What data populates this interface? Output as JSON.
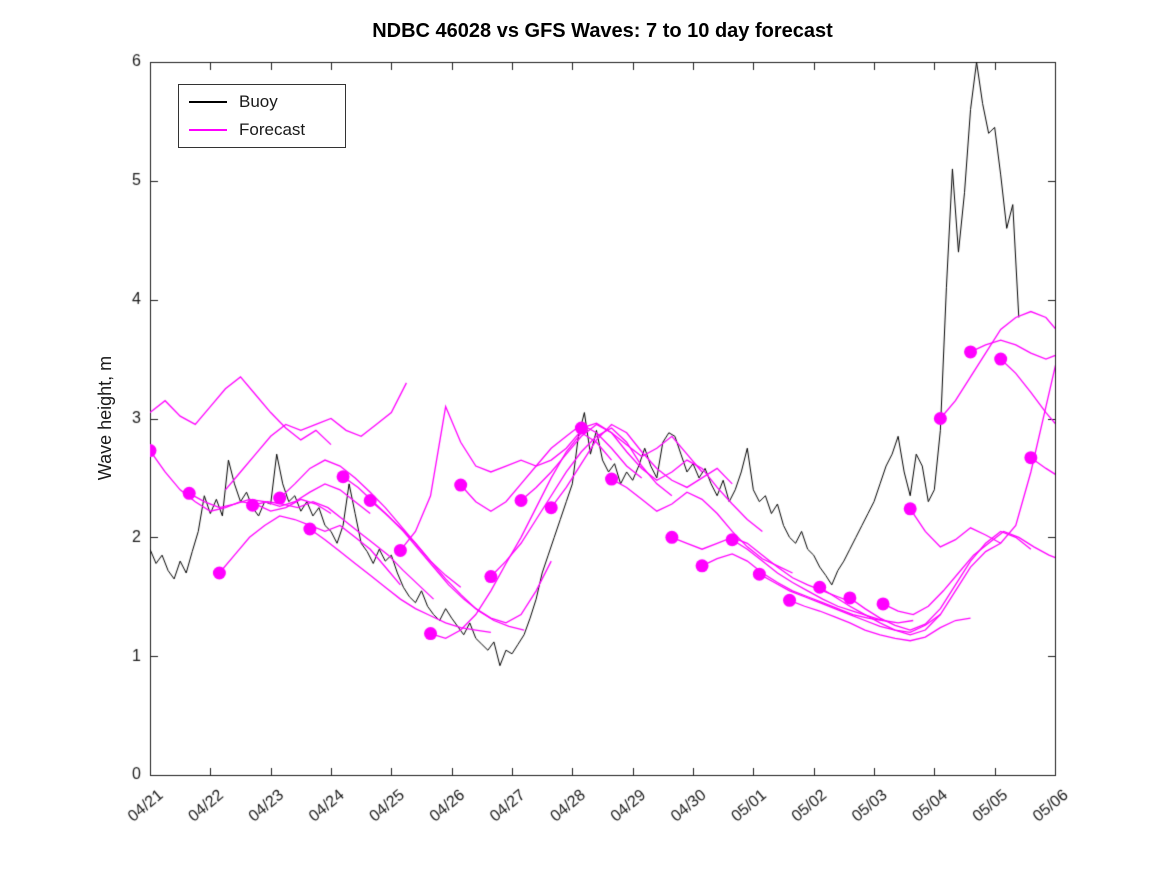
{
  "chart_data": {
    "type": "line",
    "title": "NDBC 46028 vs GFS Waves: 7 to 10 day forecast",
    "xlabel": "",
    "ylabel": "Wave height, m",
    "ylim": [
      0,
      6
    ],
    "yticks": [
      0,
      1,
      2,
      3,
      4,
      5,
      6
    ],
    "xlim_days": [
      0,
      15
    ],
    "xtick_days": [
      0,
      1,
      2,
      3,
      4,
      5,
      6,
      7,
      8,
      9,
      10,
      11,
      12,
      13,
      14,
      15
    ],
    "xtick_labels": [
      "04/21",
      "04/22",
      "04/23",
      "04/24",
      "04/25",
      "04/26",
      "04/27",
      "04/28",
      "04/29",
      "04/30",
      "05/01",
      "05/02",
      "05/03",
      "05/04",
      "05/05",
      "05/06"
    ],
    "grid": false,
    "legend_position": "top-left",
    "legend": [
      {
        "label": "Buoy",
        "color": "#000000"
      },
      {
        "label": "Forecast",
        "color": "#ff00ff"
      }
    ],
    "series": {
      "buoy": {
        "name": "Buoy",
        "color": "#000000",
        "start_day": 0,
        "step_days": 0.1,
        "values": [
          1.9,
          1.78,
          1.85,
          1.72,
          1.65,
          1.8,
          1.7,
          1.88,
          2.05,
          2.35,
          2.2,
          2.32,
          2.18,
          2.65,
          2.45,
          2.3,
          2.38,
          2.25,
          2.18,
          2.3,
          2.28,
          2.7,
          2.45,
          2.3,
          2.35,
          2.22,
          2.3,
          2.18,
          2.25,
          2.1,
          2.05,
          1.95,
          2.1,
          2.45,
          2.2,
          1.95,
          1.88,
          1.78,
          1.9,
          1.8,
          1.85,
          1.7,
          1.58,
          1.5,
          1.45,
          1.55,
          1.42,
          1.35,
          1.3,
          1.4,
          1.32,
          1.25,
          1.18,
          1.28,
          1.15,
          1.1,
          1.05,
          1.12,
          0.92,
          1.05,
          1.02,
          1.1,
          1.18,
          1.32,
          1.48,
          1.7,
          1.85,
          2.0,
          2.15,
          2.3,
          2.45,
          2.85,
          3.05,
          2.7,
          2.9,
          2.65,
          2.55,
          2.62,
          2.45,
          2.55,
          2.48,
          2.6,
          2.75,
          2.6,
          2.5,
          2.8,
          2.88,
          2.85,
          2.7,
          2.55,
          2.62,
          2.5,
          2.58,
          2.45,
          2.35,
          2.48,
          2.3,
          2.4,
          2.55,
          2.75,
          2.4,
          2.3,
          2.35,
          2.2,
          2.28,
          2.1,
          2.0,
          1.95,
          2.05,
          1.9,
          1.85,
          1.75,
          1.68,
          1.6,
          1.72,
          1.8,
          1.9,
          2.0,
          2.1,
          2.2,
          2.3,
          2.45,
          2.6,
          2.7,
          2.85,
          2.55,
          2.35,
          2.7,
          2.6,
          2.3,
          2.4,
          2.9,
          4.1,
          5.1,
          4.4,
          4.9,
          5.6,
          6.0,
          5.65,
          5.4,
          5.45,
          5.05,
          4.6,
          4.8,
          3.85
        ]
      },
      "forecast": {
        "name": "Forecast",
        "color": "#ff00ff",
        "marker": "filled-circle",
        "step_days": 0.25,
        "runs": [
          {
            "start_day": 0.0,
            "dot": false,
            "values": [
              3.05,
              3.15,
              3.02,
              2.95,
              3.1,
              3.25,
              3.35,
              3.2,
              3.05,
              2.92,
              2.82,
              2.9,
              2.78
            ]
          },
          {
            "start_day": 0.0,
            "dot": true,
            "values": [
              2.73,
              2.55,
              2.4,
              2.3,
              2.22,
              2.25,
              2.3,
              2.28,
              2.22,
              2.25,
              2.32,
              2.28,
              2.2
            ]
          },
          {
            "start_day": 0.65,
            "dot": true,
            "values": [
              2.37,
              2.3,
              2.25,
              2.28,
              2.32,
              2.3,
              2.26,
              2.3,
              2.38,
              2.45,
              2.4,
              2.3,
              2.2
            ]
          },
          {
            "start_day": 1.15,
            "dot": true,
            "values": [
              1.7,
              1.85,
              2.0,
              2.1,
              2.18,
              2.15,
              2.1,
              2.05,
              2.1,
              2.0,
              1.9,
              1.75,
              1.6
            ]
          },
          {
            "start_day": 1.25,
            "dot": false,
            "values": [
              2.4,
              2.55,
              2.7,
              2.85,
              2.95,
              2.9,
              2.95,
              3.0,
              2.9,
              2.85,
              2.95,
              3.05,
              3.3
            ]
          },
          {
            "start_day": 1.7,
            "dot": true,
            "values": [
              2.27,
              2.3,
              2.28,
              2.25,
              2.3,
              2.25,
              2.15,
              2.05,
              1.95,
              1.85,
              1.72,
              1.6,
              1.48
            ]
          },
          {
            "start_day": 2.15,
            "dot": true,
            "values": [
              2.33,
              2.45,
              2.58,
              2.65,
              2.6,
              2.5,
              2.38,
              2.25,
              2.1,
              1.95,
              1.8,
              1.68,
              1.58
            ]
          },
          {
            "start_day": 2.65,
            "dot": true,
            "values": [
              2.07,
              1.98,
              1.88,
              1.78,
              1.68,
              1.58,
              1.48,
              1.4,
              1.34,
              1.28,
              1.24,
              1.22,
              1.2
            ]
          },
          {
            "start_day": 3.2,
            "dot": true,
            "values": [
              2.51,
              2.42,
              2.3,
              2.18,
              2.05,
              1.9,
              1.75,
              1.6,
              1.48,
              1.38,
              1.3,
              1.25,
              1.22
            ]
          },
          {
            "start_day": 3.65,
            "dot": true,
            "values": [
              2.31,
              2.2,
              2.08,
              1.95,
              1.8,
              1.65,
              1.52,
              1.4,
              1.32,
              1.28,
              1.35,
              1.55,
              1.8
            ]
          },
          {
            "start_day": 4.15,
            "dot": true,
            "values": [
              1.89,
              2.05,
              2.35,
              3.1,
              2.8,
              2.6,
              2.55,
              2.6,
              2.65,
              2.6,
              2.65,
              2.75,
              2.9
            ]
          },
          {
            "start_day": 4.65,
            "dot": true,
            "values": [
              1.19,
              1.15,
              1.22,
              1.35,
              1.55,
              1.78,
              2.0,
              2.25,
              2.5,
              2.72,
              2.88,
              2.8,
              2.65
            ]
          },
          {
            "start_day": 5.15,
            "dot": true,
            "values": [
              2.44,
              2.3,
              2.22,
              2.3,
              2.45,
              2.6,
              2.75,
              2.85,
              2.95,
              2.88,
              2.75,
              2.6,
              2.5
            ]
          },
          {
            "start_day": 5.65,
            "dot": true,
            "values": [
              1.67,
              1.8,
              1.95,
              2.15,
              2.35,
              2.55,
              2.72,
              2.85,
              2.92,
              2.8,
              2.6,
              2.45,
              2.35
            ]
          },
          {
            "start_day": 6.15,
            "dot": true,
            "values": [
              2.31,
              2.42,
              2.55,
              2.7,
              2.85,
              2.95,
              2.88,
              2.78,
              2.68,
              2.75,
              2.85,
              2.7,
              2.55
            ]
          },
          {
            "start_day": 6.65,
            "dot": true,
            "values": [
              2.25,
              2.42,
              2.62,
              2.82,
              2.95,
              2.88,
              2.72,
              2.58,
              2.48,
              2.42,
              2.5,
              2.58,
              2.45
            ]
          },
          {
            "start_day": 7.15,
            "dot": true,
            "values": [
              2.92,
              2.96,
              2.88,
              2.72,
              2.58,
              2.48,
              2.55,
              2.65,
              2.58,
              2.42,
              2.28,
              2.15,
              2.05
            ]
          },
          {
            "start_day": 7.65,
            "dot": true,
            "values": [
              2.49,
              2.42,
              2.32,
              2.22,
              2.28,
              2.38,
              2.32,
              2.2,
              2.05,
              1.92,
              1.82,
              1.76,
              1.7
            ]
          },
          {
            "start_day": 8.65,
            "dot": true,
            "values": [
              2.0,
              1.95,
              1.9,
              1.95,
              2.0,
              1.95,
              1.85,
              1.75,
              1.66,
              1.6,
              1.55,
              1.5,
              1.45
            ]
          },
          {
            "start_day": 9.15,
            "dot": true,
            "values": [
              1.76,
              1.82,
              1.86,
              1.8,
              1.7,
              1.62,
              1.55,
              1.5,
              1.45,
              1.4,
              1.35,
              1.32,
              1.3
            ]
          },
          {
            "start_day": 9.65,
            "dot": true,
            "values": [
              1.98,
              1.9,
              1.8,
              1.7,
              1.62,
              1.55,
              1.48,
              1.42,
              1.38,
              1.34,
              1.3,
              1.28,
              1.3
            ]
          },
          {
            "start_day": 10.1,
            "dot": true,
            "values": [
              1.69,
              1.62,
              1.55,
              1.5,
              1.45,
              1.4,
              1.35,
              1.3,
              1.25,
              1.22,
              1.2,
              1.26,
              1.35
            ]
          },
          {
            "start_day": 10.6,
            "dot": true,
            "values": [
              1.47,
              1.42,
              1.38,
              1.33,
              1.28,
              1.22,
              1.18,
              1.15,
              1.13,
              1.16,
              1.24,
              1.3,
              1.32
            ]
          },
          {
            "start_day": 11.1,
            "dot": true,
            "values": [
              1.58,
              1.5,
              1.42,
              1.35,
              1.28,
              1.22,
              1.18,
              1.22,
              1.35,
              1.55,
              1.75,
              1.88,
              1.95
            ]
          },
          {
            "start_day": 11.6,
            "dot": true,
            "values": [
              1.49,
              1.4,
              1.32,
              1.26,
              1.22,
              1.27,
              1.4,
              1.6,
              1.8,
              1.95,
              2.05,
              2.0,
              1.9
            ]
          },
          {
            "start_day": 12.15,
            "dot": true,
            "values": [
              1.44,
              1.38,
              1.35,
              1.42,
              1.55,
              1.7,
              1.85,
              1.95,
              2.05,
              2.0,
              1.92,
              1.85,
              1.8
            ]
          },
          {
            "start_day": 12.6,
            "dot": true,
            "values": [
              2.24,
              2.05,
              1.92,
              1.98,
              2.08,
              2.02,
              1.95,
              2.1,
              2.55,
              3.1,
              3.65,
              3.7,
              3.6
            ]
          },
          {
            "start_day": 13.1,
            "dot": true,
            "values": [
              3.0,
              3.15,
              3.35,
              3.55,
              3.75,
              3.85,
              3.9,
              3.85,
              3.7,
              3.5,
              3.3,
              3.1,
              2.9
            ]
          },
          {
            "start_day": 13.6,
            "dot": true,
            "values": [
              3.56,
              3.62,
              3.66,
              3.62,
              3.55,
              3.5,
              3.55,
              3.6,
              3.55,
              3.45,
              3.35,
              3.25,
              3.15
            ]
          },
          {
            "start_day": 14.1,
            "dot": true,
            "values": [
              3.5,
              3.38,
              3.22,
              3.05,
              2.9,
              2.78,
              2.68,
              2.6,
              2.52,
              2.45,
              2.4,
              2.35,
              2.3
            ]
          },
          {
            "start_day": 14.6,
            "dot": true,
            "values": [
              2.67,
              2.58,
              2.5,
              2.42,
              2.35,
              2.3,
              2.25,
              2.2,
              2.15,
              2.1,
              2.05,
              2.0,
              1.95
            ]
          }
        ]
      }
    }
  }
}
